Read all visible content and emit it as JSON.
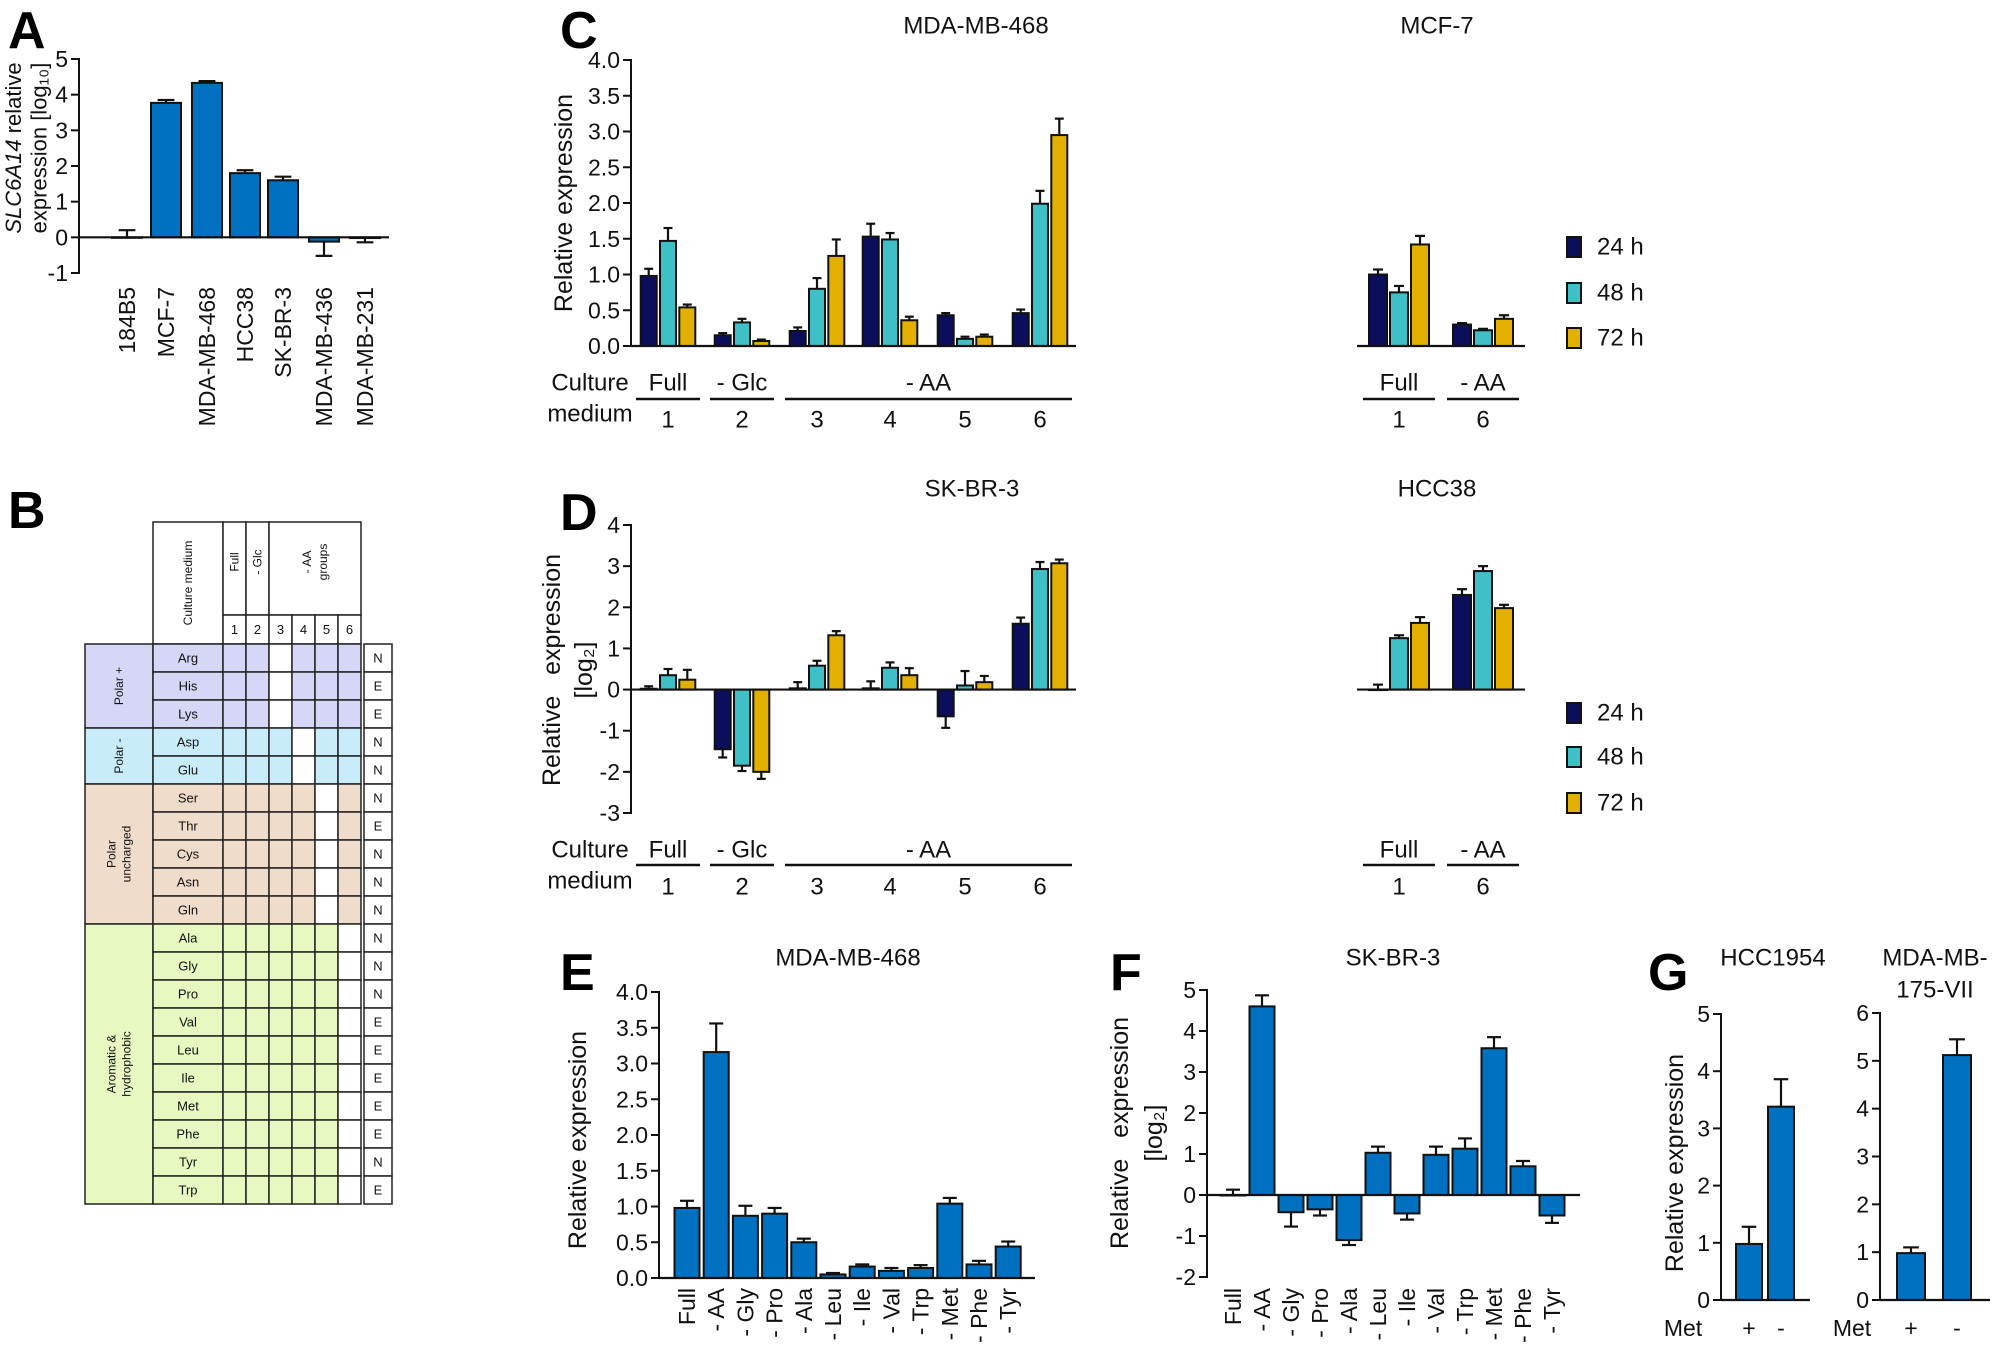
{
  "panel_labels": [
    "A",
    "B",
    "C",
    "D",
    "E",
    "F",
    "G"
  ],
  "table": {
    "header_label": "Culture medium",
    "media": [
      {
        "label_lines": [
          "Full"
        ],
        "columns": [
          "1"
        ]
      },
      {
        "label_lines": [
          "- Glc"
        ],
        "columns": [
          "2"
        ]
      },
      {
        "label_lines": [
          "- AA",
          "groups"
        ],
        "columns": [
          "3",
          "4",
          "5",
          "6"
        ]
      }
    ],
    "groups": [
      {
        "name_lines": [
          "Polar +"
        ],
        "color": "#d6d6f6",
        "removed_in_medium": 3,
        "rows": [
          {
            "aa": "Arg",
            "type": "N"
          },
          {
            "aa": "His",
            "type": "E"
          },
          {
            "aa": "Lys",
            "type": "E"
          }
        ]
      },
      {
        "name_lines": [
          "Polar -"
        ],
        "color": "#c8ecfa",
        "removed_in_medium": 4,
        "rows": [
          {
            "aa": "Asp",
            "type": "N"
          },
          {
            "aa": "Glu",
            "type": "N"
          }
        ]
      },
      {
        "name_lines": [
          "Polar",
          "uncharged"
        ],
        "color": "#efdccb",
        "removed_in_medium": 5,
        "rows": [
          {
            "aa": "Ser",
            "type": "N"
          },
          {
            "aa": "Thr",
            "type": "E"
          },
          {
            "aa": "Cys",
            "type": "N"
          },
          {
            "aa": "Asn",
            "type": "N"
          },
          {
            "aa": "Gln",
            "type": "N"
          }
        ]
      },
      {
        "name_lines": [
          "Aromatic &",
          "hydrophobic"
        ],
        "color": "#e7f8c1",
        "removed_in_medium": 6,
        "rows": [
          {
            "aa": "Ala",
            "type": "N"
          },
          {
            "aa": "Gly",
            "type": "N"
          },
          {
            "aa": "Pro",
            "type": "N"
          },
          {
            "aa": "Val",
            "type": "E"
          },
          {
            "aa": "Leu",
            "type": "E"
          },
          {
            "aa": "Ile",
            "type": "E"
          },
          {
            "aa": "Met",
            "type": "E"
          },
          {
            "aa": "Phe",
            "type": "E"
          },
          {
            "aa": "Tyr",
            "type": "N"
          },
          {
            "aa": "Trp",
            "type": "E"
          }
        ]
      }
    ]
  },
  "chart_data": [
    {
      "id": "A",
      "type": "bar",
      "title_lines": [],
      "ylabel": {
        "italic": "SLC6A14",
        "line1": " relative",
        "line2": "expression [log₁₀]"
      },
      "categories": [
        "184B5",
        "MCF-7",
        "MDA-MB-468",
        "HCC38",
        "SK-BR-3",
        "MDA-MB-436",
        "MDA-MB-231"
      ],
      "values": [
        0.0,
        3.77,
        4.33,
        1.8,
        1.6,
        -0.12,
        -0.02
      ],
      "errors": [
        0.2,
        0.08,
        0.05,
        0.08,
        0.1,
        0.4,
        0.12
      ],
      "color": "#0070c0",
      "ylim": [
        -1,
        5
      ],
      "yticks": [
        -1,
        0,
        1,
        2,
        3,
        4,
        5
      ],
      "ytick_labels": [
        "-1",
        "0",
        "1",
        "2",
        "3",
        "4",
        "5"
      ]
    },
    {
      "id": "C1",
      "type": "bar",
      "title_lines": [
        "MDA-MB-468"
      ],
      "ylabel_lines": [
        "Relative expression"
      ],
      "ylim": [
        0,
        4
      ],
      "yticks": [
        0,
        0.5,
        1,
        1.5,
        2,
        2.5,
        3,
        3.5,
        4
      ],
      "ytick_labels": [
        "0.0",
        "0.5",
        "1.0",
        "1.5",
        "2.0",
        "2.5",
        "3.0",
        "3.5",
        "4.0"
      ],
      "series": [
        {
          "name": "24 h",
          "color": "#0b0e5a",
          "values": [
            0.98,
            0.15,
            0.21,
            1.53,
            0.43,
            0.46
          ],
          "errors": [
            0.1,
            0.03,
            0.05,
            0.18,
            0.03,
            0.05
          ]
        },
        {
          "name": "48 h",
          "color": "#3fbfc6",
          "values": [
            1.47,
            0.33,
            0.8,
            1.49,
            0.1,
            1.99
          ],
          "errors": [
            0.18,
            0.05,
            0.15,
            0.09,
            0.03,
            0.18
          ]
        },
        {
          "name": "72 h",
          "color": "#e3b000",
          "values": [
            0.54,
            0.07,
            1.26,
            0.36,
            0.13,
            2.95
          ],
          "errors": [
            0.04,
            0.02,
            0.23,
            0.05,
            0.03,
            0.23
          ]
        }
      ],
      "medium": {
        "label_lines": [
          "Culture",
          "medium"
        ],
        "groups": [
          {
            "label": "Full",
            "members": [
              0
            ]
          },
          {
            "label": "- Glc",
            "members": [
              1
            ]
          },
          {
            "label": "- AA",
            "members": [
              2,
              3,
              4,
              5
            ]
          }
        ],
        "numbers": [
          "1",
          "2",
          "3",
          "4",
          "5",
          "6"
        ]
      }
    },
    {
      "id": "C2",
      "type": "bar",
      "title_lines": [
        "MCF-7"
      ],
      "ylim": [
        0,
        4
      ],
      "series": [
        {
          "name": "24 h",
          "color": "#0b0e5a",
          "values": [
            1.0,
            0.3
          ],
          "errors": [
            0.07,
            0.02
          ]
        },
        {
          "name": "48 h",
          "color": "#3fbfc6",
          "values": [
            0.75,
            0.22
          ],
          "errors": [
            0.09,
            0.02
          ]
        },
        {
          "name": "72 h",
          "color": "#e3b000",
          "values": [
            1.42,
            0.38
          ],
          "errors": [
            0.12,
            0.05
          ]
        }
      ],
      "legend": "right",
      "medium": {
        "groups": [
          {
            "label": "Full",
            "members": [
              0
            ]
          },
          {
            "label": "- AA",
            "members": [
              1
            ]
          }
        ],
        "numbers": [
          "1",
          "6"
        ]
      }
    },
    {
      "id": "D1",
      "type": "bar",
      "title_lines": [
        "SK-BR-3"
      ],
      "ylabel_lines": [
        "Relative   expression",
        "[log₂]"
      ],
      "ylim": [
        -3,
        4
      ],
      "yticks": [
        -3,
        -2,
        -1,
        0,
        1,
        2,
        3,
        4
      ],
      "ytick_labels": [
        "-3",
        "-2",
        "-1",
        "0",
        "1",
        "2",
        "3",
        "4"
      ],
      "series": [
        {
          "name": "24 h",
          "color": "#0b0e5a",
          "values": [
            0.02,
            -1.45,
            0.03,
            0.03,
            -0.65,
            1.6
          ],
          "errors": [
            0.06,
            0.2,
            0.15,
            0.17,
            0.28,
            0.15
          ]
        },
        {
          "name": "48 h",
          "color": "#3fbfc6",
          "values": [
            0.35,
            -1.85,
            0.58,
            0.53,
            0.1,
            2.93
          ],
          "errors": [
            0.15,
            0.13,
            0.12,
            0.13,
            0.35,
            0.17
          ]
        },
        {
          "name": "72 h",
          "color": "#e3b000",
          "values": [
            0.24,
            -2.0,
            1.32,
            0.35,
            0.18,
            3.07
          ],
          "errors": [
            0.24,
            0.17,
            0.1,
            0.17,
            0.15,
            0.09
          ]
        }
      ],
      "medium": {
        "label_lines": [
          "Culture",
          "medium"
        ],
        "groups": [
          {
            "label": "Full",
            "members": [
              0
            ]
          },
          {
            "label": "- Glc",
            "members": [
              1
            ]
          },
          {
            "label": "- AA",
            "members": [
              2,
              3,
              4,
              5
            ]
          }
        ],
        "numbers": [
          "1",
          "2",
          "3",
          "4",
          "5",
          "6"
        ]
      }
    },
    {
      "id": "D2",
      "type": "bar",
      "title_lines": [
        "HCC38"
      ],
      "ylim": [
        -3,
        4
      ],
      "series": [
        {
          "name": "24 h",
          "color": "#0b0e5a",
          "values": [
            0.0,
            2.3
          ],
          "errors": [
            0.12,
            0.14
          ]
        },
        {
          "name": "48 h",
          "color": "#3fbfc6",
          "values": [
            1.25,
            2.88
          ],
          "errors": [
            0.07,
            0.12
          ]
        },
        {
          "name": "72 h",
          "color": "#e3b000",
          "values": [
            1.62,
            1.98
          ],
          "errors": [
            0.14,
            0.08
          ]
        }
      ],
      "legend": "right",
      "medium": {
        "groups": [
          {
            "label": "Full",
            "members": [
              0
            ]
          },
          {
            "label": "- AA",
            "members": [
              1
            ]
          }
        ],
        "numbers": [
          "1",
          "6"
        ]
      }
    },
    {
      "id": "E",
      "type": "bar",
      "title_lines": [
        "MDA-MB-468"
      ],
      "ylabel_lines": [
        "Relative expression"
      ],
      "categories": [
        "Full",
        "- AA",
        "- Gly",
        "- Pro",
        "- Ala",
        "- Leu",
        "- Ile",
        "- Val",
        "- Trp",
        "- Met",
        "- Phe",
        "- Tyr"
      ],
      "values": [
        0.98,
        3.16,
        0.87,
        0.9,
        0.5,
        0.05,
        0.16,
        0.1,
        0.14,
        1.04,
        0.19,
        0.44
      ],
      "errors": [
        0.1,
        0.4,
        0.14,
        0.08,
        0.05,
        0.02,
        0.03,
        0.04,
        0.04,
        0.08,
        0.05,
        0.07
      ],
      "color": "#0070c0",
      "ylim": [
        0,
        4
      ],
      "yticks": [
        0,
        0.5,
        1,
        1.5,
        2,
        2.5,
        3,
        3.5,
        4
      ],
      "ytick_labels": [
        "0.0",
        "0.5",
        "1.0",
        "1.5",
        "2.0",
        "2.5",
        "3.0",
        "3.5",
        "4.0"
      ]
    },
    {
      "id": "F",
      "type": "bar",
      "title_lines": [
        "SK-BR-3"
      ],
      "ylabel_lines": [
        "Relative   expression",
        "[log₂]"
      ],
      "categories": [
        "Full",
        "- AA",
        "- Gly",
        "- Pro",
        "- Ala",
        "- Leu",
        "- Ile",
        "- Val",
        "- Trp",
        "- Met",
        "- Phe",
        "- Tyr"
      ],
      "values": [
        0.0,
        4.6,
        -0.42,
        -0.35,
        -1.1,
        1.03,
        -0.45,
        0.98,
        1.13,
        3.58,
        0.7,
        -0.5
      ],
      "errors": [
        0.13,
        0.27,
        0.35,
        0.15,
        0.12,
        0.15,
        0.15,
        0.2,
        0.25,
        0.27,
        0.13,
        0.18
      ],
      "color": "#0070c0",
      "ylim": [
        -2,
        5
      ],
      "yticks": [
        -2,
        -1,
        0,
        1,
        2,
        3,
        4,
        5
      ],
      "ytick_labels": [
        "-2",
        "-1",
        "0",
        "1",
        "2",
        "3",
        "4",
        "5"
      ]
    },
    {
      "id": "G1",
      "type": "bar",
      "title_lines": [
        "HCC1954"
      ],
      "ylabel_lines": [
        "Relative expression"
      ],
      "xlabel": "Met",
      "categories": [
        "+",
        "-"
      ],
      "values": [
        0.98,
        3.38
      ],
      "errors": [
        0.3,
        0.48
      ],
      "color": "#0070c0",
      "ylim": [
        0,
        5
      ],
      "yticks": [
        0,
        1,
        2,
        3,
        4,
        5
      ],
      "ytick_labels": [
        "0",
        "1",
        "2",
        "3",
        "4",
        "5"
      ]
    },
    {
      "id": "G2",
      "type": "bar",
      "title_lines": [
        "MDA-MB-",
        "175-VII"
      ],
      "xlabel": "Met",
      "categories": [
        "+",
        "-"
      ],
      "values": [
        0.98,
        5.12
      ],
      "errors": [
        0.12,
        0.33
      ],
      "color": "#0070c0",
      "ylim": [
        0,
        6
      ],
      "yticks": [
        0,
        1,
        2,
        3,
        4,
        5,
        6
      ],
      "ytick_labels": [
        "0",
        "1",
        "2",
        "3",
        "4",
        "5",
        "6"
      ]
    }
  ]
}
